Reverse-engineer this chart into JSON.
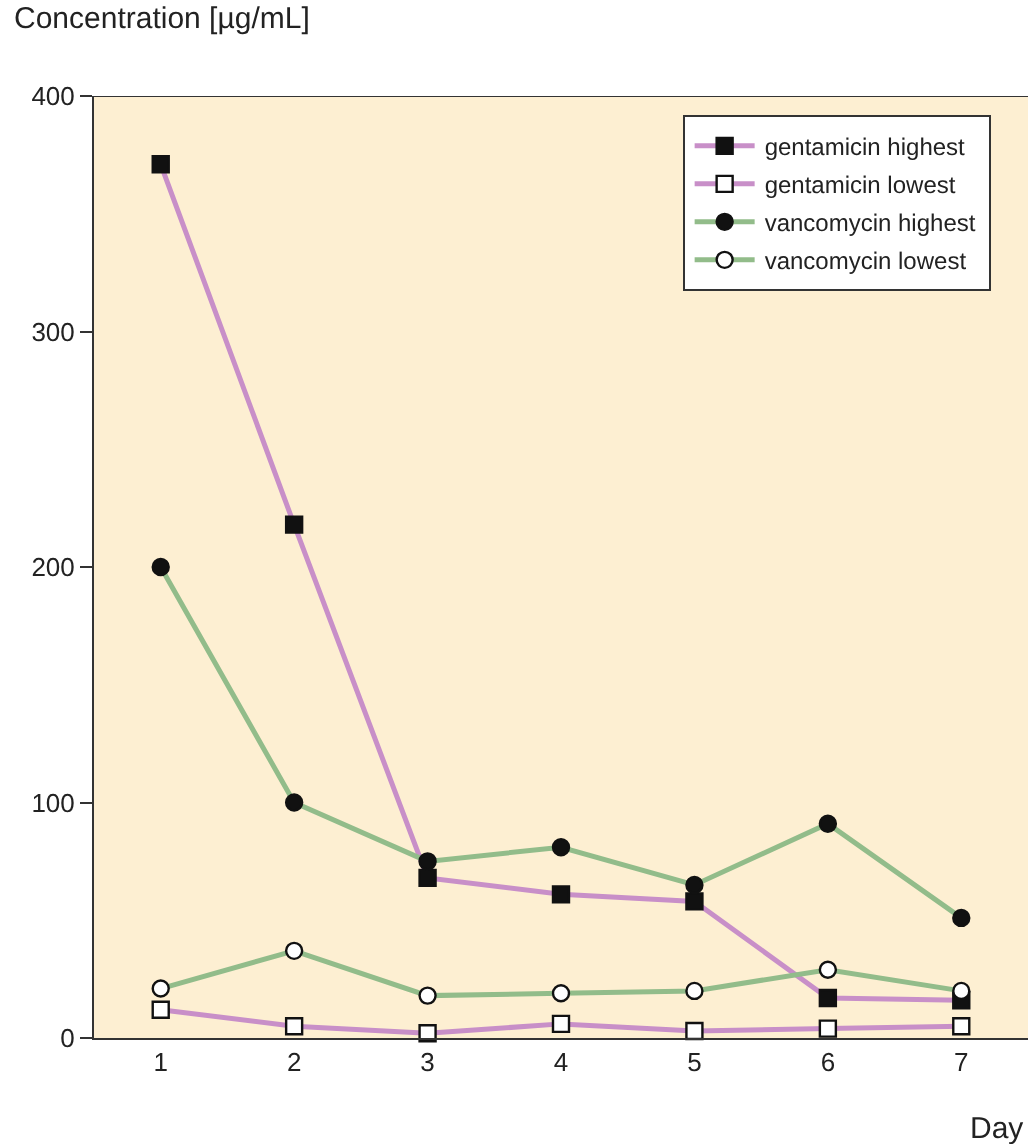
{
  "chart_data": {
    "type": "line",
    "ylabel": "Concentration [µg/mL]",
    "xlabel": "Day",
    "categories": [
      "1",
      "2",
      "3",
      "4",
      "5",
      "6",
      "7"
    ],
    "series": [
      {
        "name": "gentamicin highest",
        "color": "#c88fc8",
        "marker": "square",
        "values": [
          371,
          218,
          68,
          61,
          58,
          17,
          16
        ]
      },
      {
        "name": "gentamicin lowest",
        "color": "#c88fc8",
        "marker": "square",
        "values": [
          12,
          5,
          2,
          6,
          3,
          4,
          5
        ]
      },
      {
        "name": "vancomycin highest",
        "color": "#92bc8a",
        "marker": "circle",
        "values": [
          200,
          100,
          75,
          81,
          65,
          91,
          51
        ]
      },
      {
        "name": "vancomycin lowest",
        "color": "#92bc8a",
        "marker": "circle",
        "values": [
          21,
          37,
          18,
          19,
          20,
          29,
          20
        ]
      }
    ],
    "ylim": [
      0,
      400
    ],
    "yticks": [
      0,
      100,
      200,
      300,
      400
    ],
    "grid": false,
    "legend": "top right"
  }
}
